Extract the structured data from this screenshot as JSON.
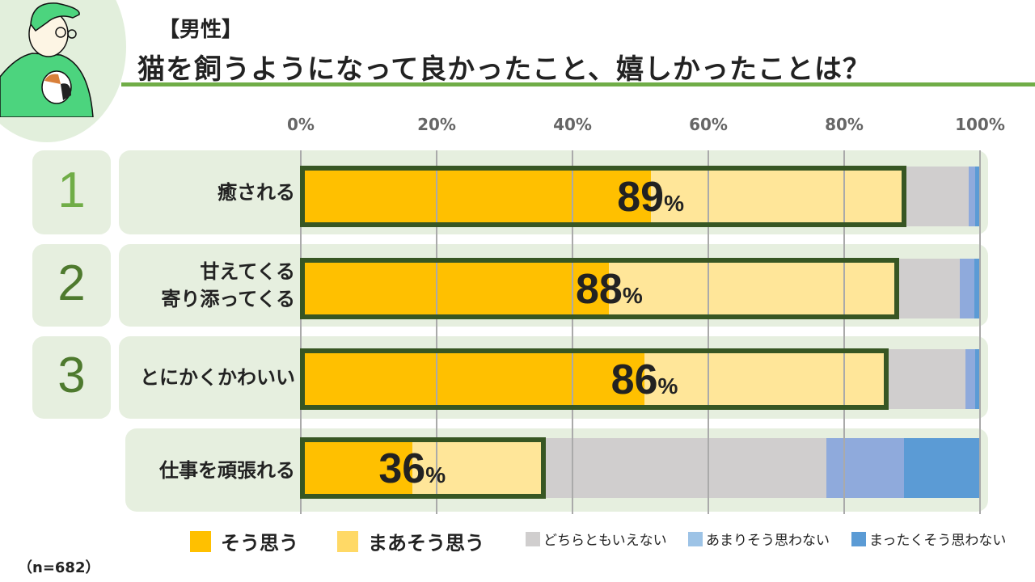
{
  "header": {
    "tag": "【男性】",
    "title": "猫を飼うようになって良かったこと、嬉しかったことは？"
  },
  "sample": "（n=682）",
  "colors": {
    "so_omou": "#ffc000",
    "maa": "#ffe699",
    "dochira": "#d0cece",
    "amari": "#8faadc",
    "mattaku": "#5b9bd5",
    "highlight": "#375623",
    "panel": "#e6efdf",
    "accent": "#70ad47"
  },
  "chart_data": {
    "type": "bar",
    "orientation": "horizontal",
    "stacked": true,
    "xlim": [
      0,
      100
    ],
    "ticks": [
      "0%",
      "20%",
      "40%",
      "60%",
      "80%",
      "100%"
    ],
    "grid": true,
    "legend_position": "bottom",
    "categories": [
      {
        "rank": "1",
        "label": [
          "癒される"
        ],
        "total": "89",
        "unit": "%"
      },
      {
        "rank": "2",
        "label": [
          "甘えてくる",
          "寄り添ってくる"
        ],
        "total": "88",
        "unit": "%"
      },
      {
        "rank": "3",
        "label": [
          "とにかくかわいい"
        ],
        "total": "86",
        "unit": "%"
      },
      {
        "rank": "",
        "label": [
          "仕事を頑張れる"
        ],
        "total": "36",
        "unit": "%"
      }
    ],
    "series": [
      {
        "name": "そう思う",
        "values": [
          51.5,
          45.4,
          50.6,
          16.4
        ]
      },
      {
        "name": "まあそう思う",
        "values": [
          37.5,
          42.6,
          35.8,
          19.6
        ]
      },
      {
        "name": "どちらともいえない",
        "values": [
          9.3,
          9.0,
          11.4,
          41.4
        ]
      },
      {
        "name": "あまりそう思わない",
        "values": [
          1.0,
          2.2,
          1.5,
          11.4
        ]
      },
      {
        "name": "まったくそう思わない",
        "values": [
          0.7,
          0.8,
          0.7,
          11.2
        ]
      }
    ]
  }
}
